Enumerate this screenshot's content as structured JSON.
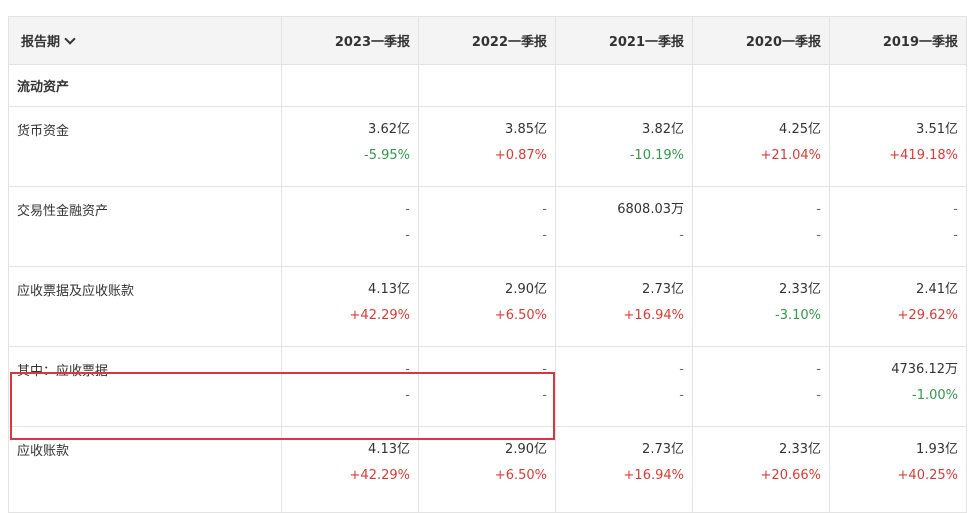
{
  "header": {
    "period_label": "报告期",
    "columns": [
      "2023一季报",
      "2022一季报",
      "2021一季报",
      "2020一季报",
      "2019一季报"
    ]
  },
  "section": {
    "title": "流动资产"
  },
  "rows": [
    {
      "label": "货币资金",
      "values": [
        "3.62亿",
        "3.85亿",
        "3.82亿",
        "4.25亿",
        "3.51亿"
      ],
      "changes": [
        "-5.95%",
        "+0.87%",
        "-10.19%",
        "+21.04%",
        "+419.18%"
      ]
    },
    {
      "label": "交易性金融资产",
      "values": [
        "-",
        "-",
        "6808.03万",
        "-",
        "-"
      ],
      "changes": [
        "-",
        "-",
        "-",
        "-",
        "-"
      ]
    },
    {
      "label": "应收票据及应收账款",
      "values": [
        "4.13亿",
        "2.90亿",
        "2.73亿",
        "2.33亿",
        "2.41亿"
      ],
      "changes": [
        "+42.29%",
        "+6.50%",
        "+16.94%",
        "-3.10%",
        "+29.62%"
      ]
    },
    {
      "label": "其中：应收票据",
      "values": [
        "-",
        "-",
        "-",
        "-",
        "4736.12万"
      ],
      "changes": [
        "-",
        "-",
        "-",
        "-",
        "-1.00%"
      ]
    },
    {
      "label": "应收账款",
      "values": [
        "4.13亿",
        "2.90亿",
        "2.73亿",
        "2.33亿",
        "1.93亿"
      ],
      "changes": [
        "+42.29%",
        "+6.50%",
        "+16.94%",
        "+20.66%",
        "+40.25%"
      ]
    }
  ],
  "colors": {
    "increase": "#e23a33",
    "decrease": "#2f9c4a",
    "highlight_border": "#d9363e",
    "header_bg": "#f4f4f4"
  }
}
